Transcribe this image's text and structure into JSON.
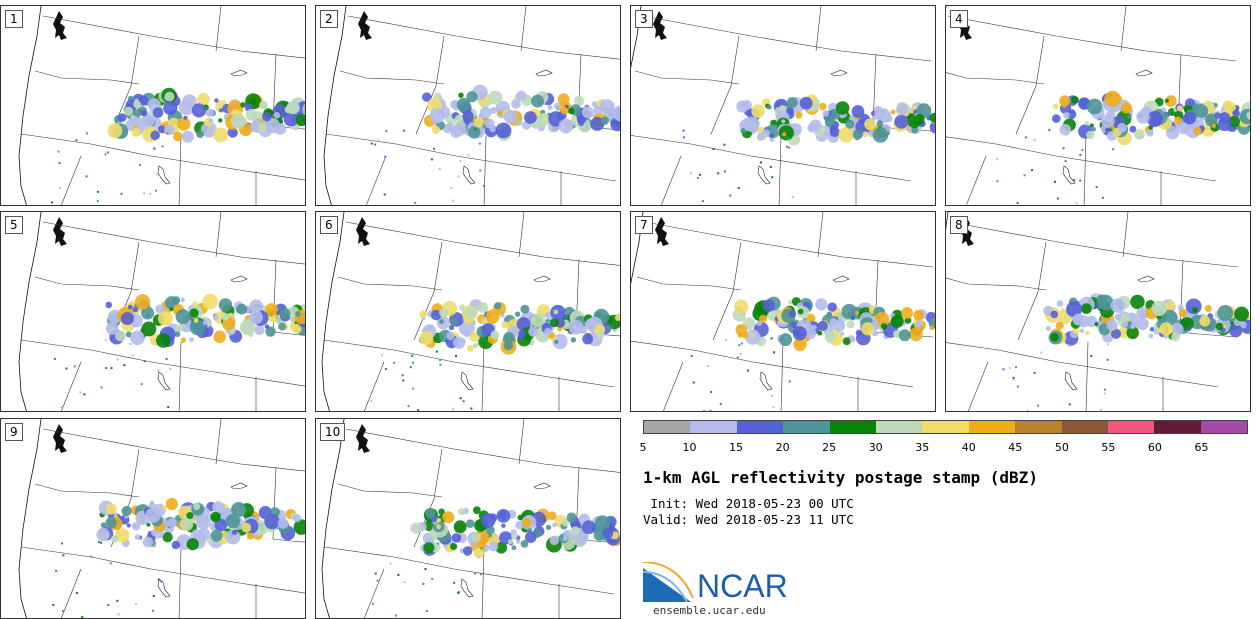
{
  "panels": [
    {
      "label": "1"
    },
    {
      "label": "2"
    },
    {
      "label": "3"
    },
    {
      "label": "4"
    },
    {
      "label": "5"
    },
    {
      "label": "6"
    },
    {
      "label": "7"
    },
    {
      "label": "8"
    },
    {
      "label": "9"
    },
    {
      "label": "10"
    }
  ],
  "colorbar": {
    "ticks": [
      "5",
      "10",
      "15",
      "20",
      "25",
      "30",
      "35",
      "40",
      "45",
      "50",
      "55",
      "60",
      "65"
    ],
    "colors": [
      "#a6a6a6",
      "#b4bdea",
      "#5561d6",
      "#4e9597",
      "#078407",
      "#bcdab9",
      "#efdd6a",
      "#eead1b",
      "#b9822f",
      "#8c5738",
      "#f1577d",
      "#621a36",
      "#a64aa7"
    ]
  },
  "title": "1-km AGL reflectivity postage stamp (dBZ)",
  "init": " Init: Wed 2018-05-23 00 UTC",
  "valid": "Valid: Wed 2018-05-23 11 UTC",
  "logo": {
    "text": "NCAR",
    "website": "ensemble.ucar.edu"
  }
}
